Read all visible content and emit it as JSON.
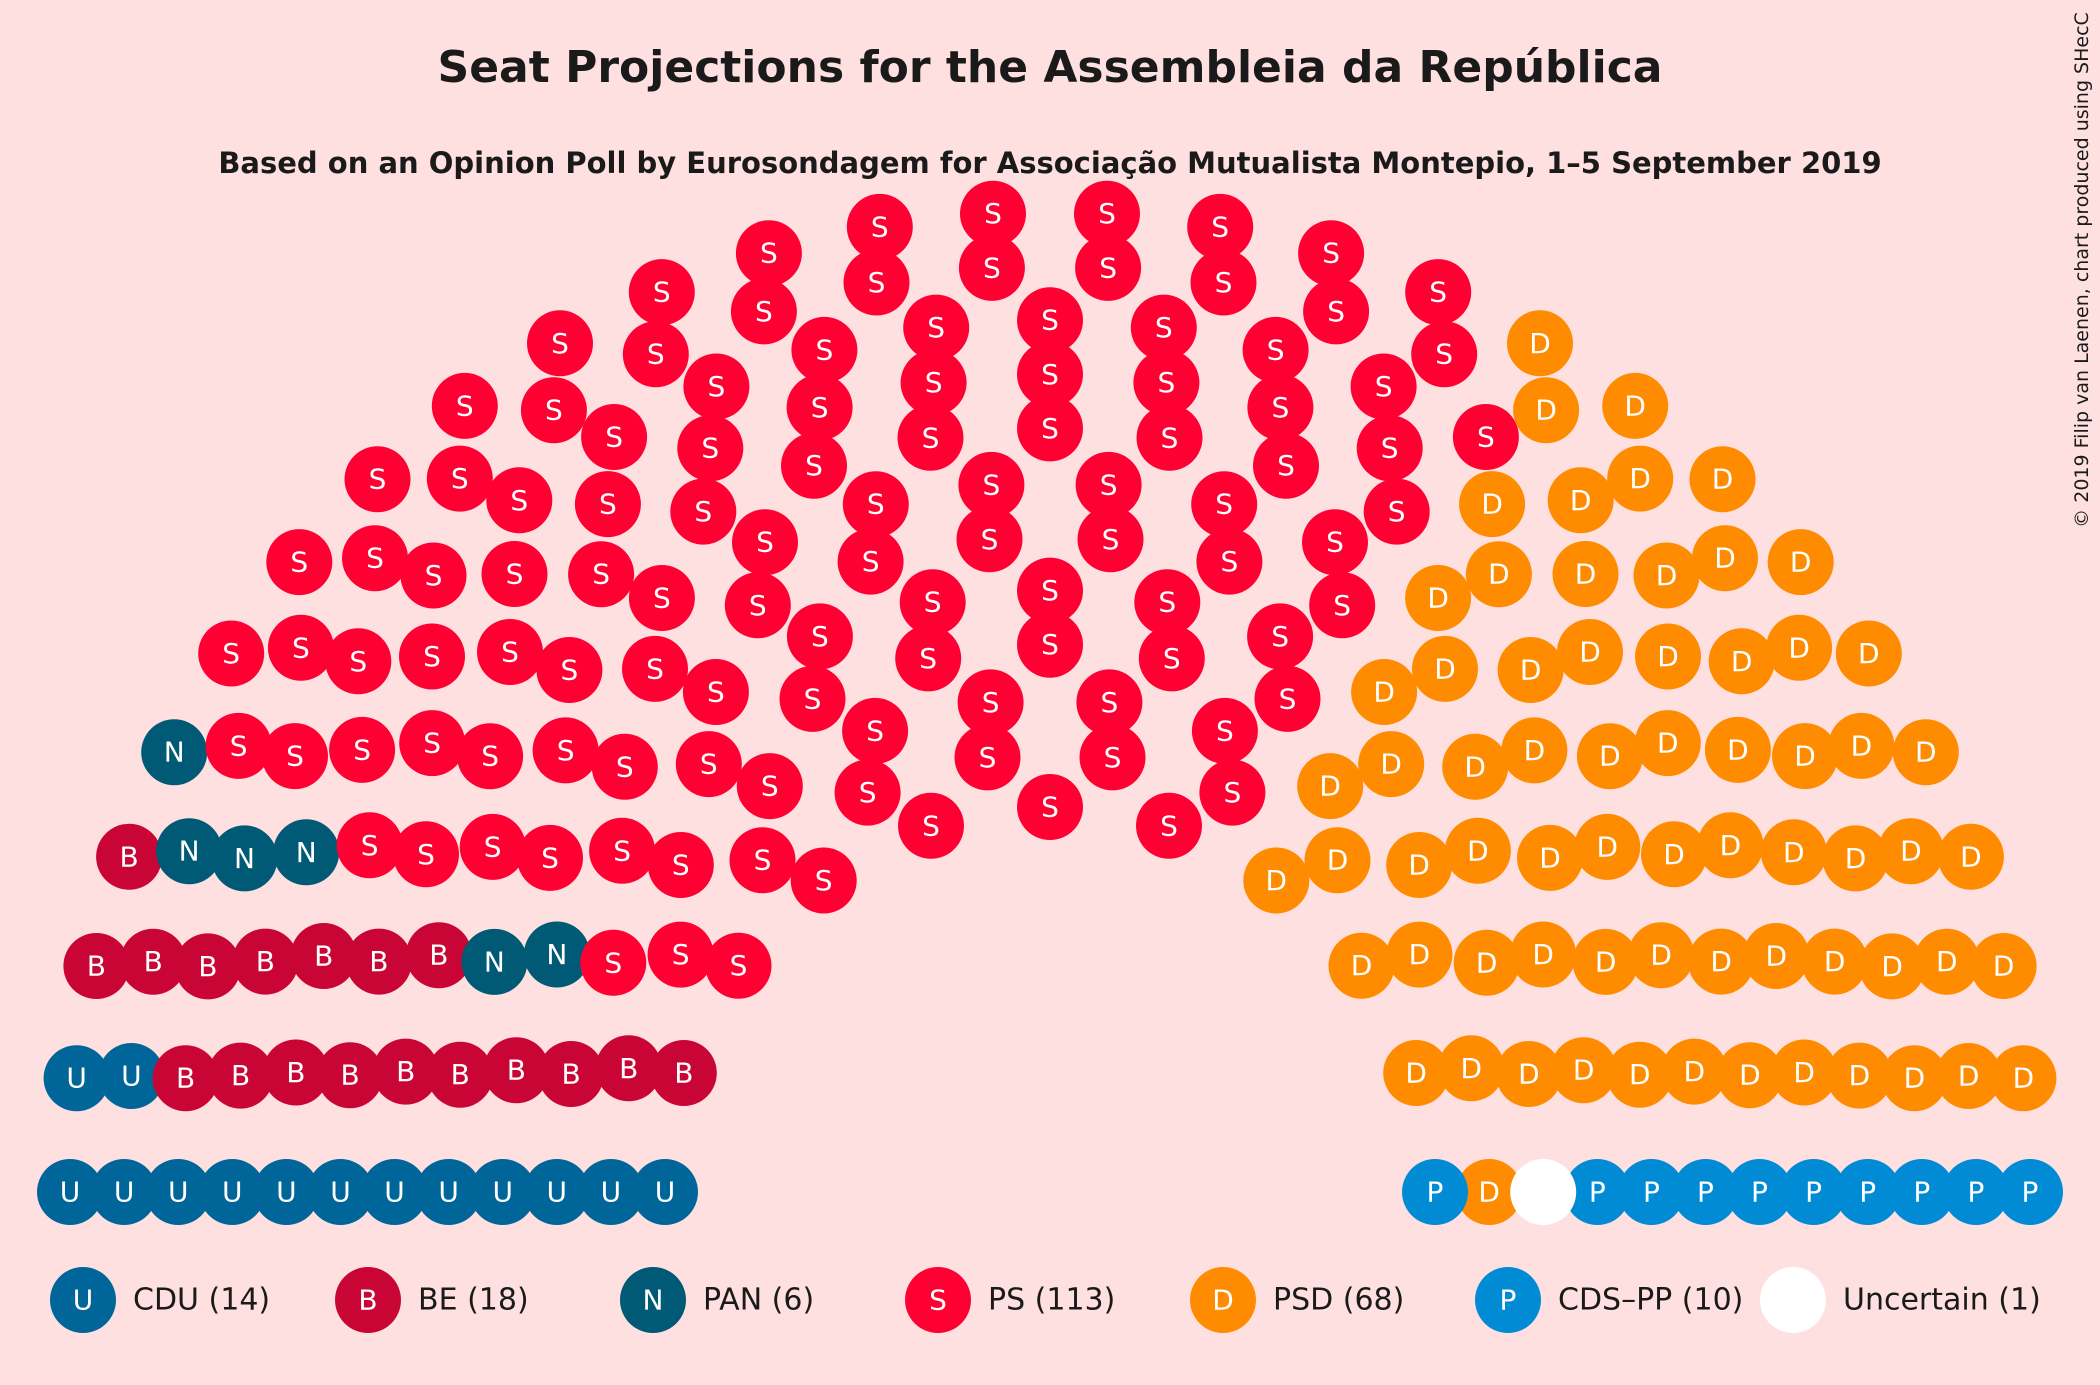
{
  "title": "Seat Projections for the Assembleia da República",
  "subtitle": "Based on an Opinion Poll by Eurosondagem for Associação Mutualista Montepio, 1–5 September 2019",
  "copyright": "© 2019 Filip van Laenen, chart produced using SHecC",
  "chart_data": {
    "type": "parliament",
    "total_seats": 230,
    "parties": [
      {
        "name": "CDU",
        "letter": "U",
        "seats": 14,
        "color": "#006699",
        "legend": "CDU (14)"
      },
      {
        "name": "BE",
        "letter": "B",
        "seats": 18,
        "color": "#C90535",
        "legend": "BE (18)"
      },
      {
        "name": "PAN",
        "letter": "N",
        "seats": 6,
        "color": "#005A75",
        "legend": "PAN (6)"
      },
      {
        "name": "PS",
        "letter": "S",
        "seats": 113,
        "color": "#FF0033",
        "legend": "PS (113)"
      },
      {
        "name": "PSD",
        "letter": "D",
        "seats": 68,
        "color": "#FF8C00",
        "legend": "PSD (68)"
      },
      {
        "name": "CDS–PP",
        "letter": "P",
        "seats": 10,
        "color": "#008BD4",
        "legend": "CDS–PP (10)"
      },
      {
        "name": "Uncertain",
        "letter": "",
        "seats": 1,
        "color": "#FFFFFF",
        "legend": "Uncertain (1)"
      }
    ]
  }
}
